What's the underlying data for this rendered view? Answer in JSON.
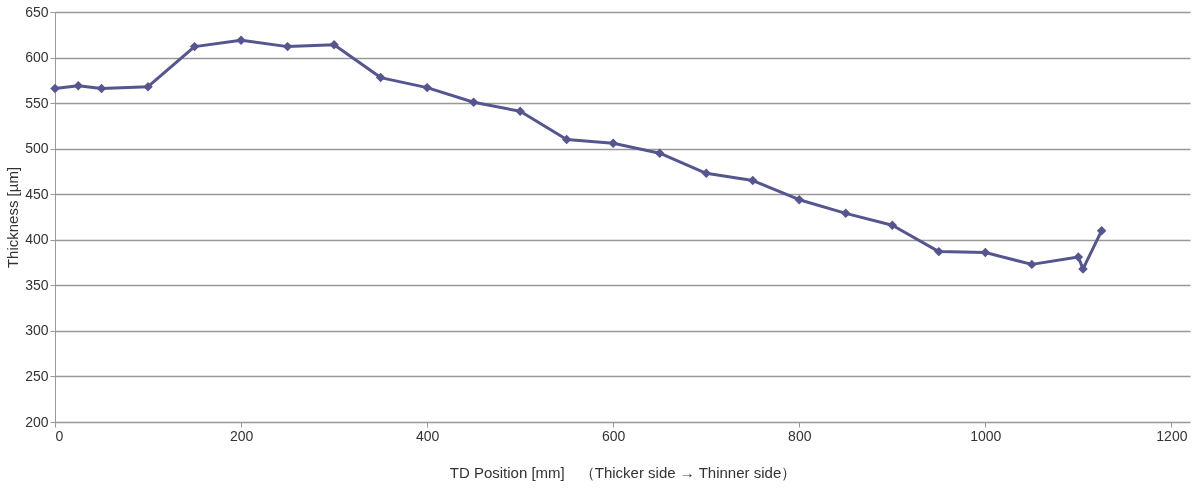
{
  "chart_data": {
    "type": "line",
    "xlabel": "TD Position [mm]　（Thicker side → Thinner side）",
    "ylabel": "Thickness [µm]",
    "x": [
      0,
      25,
      50,
      100,
      150,
      200,
      250,
      300,
      350,
      400,
      450,
      500,
      550,
      600,
      650,
      700,
      750,
      800,
      850,
      900,
      950,
      1000,
      1050,
      1100,
      1105,
      1125
    ],
    "series": [
      {
        "color": "#55558f",
        "values": [
          566,
          569,
          566,
          568,
          612,
          619,
          612,
          614,
          578,
          567,
          551,
          541,
          510,
          506,
          495,
          473,
          465,
          444,
          429,
          416,
          387,
          386,
          373,
          381,
          368,
          410
        ]
      }
    ],
    "xlim": [
      0,
      1220
    ],
    "xticks": [
      0,
      200,
      400,
      600,
      800,
      1000,
      1200
    ],
    "ylim": [
      200,
      650
    ],
    "yticks": [
      200,
      250,
      300,
      350,
      400,
      450,
      500,
      550,
      600,
      650
    ],
    "grid": "y",
    "marker": "diamond",
    "line_style": "solid"
  }
}
